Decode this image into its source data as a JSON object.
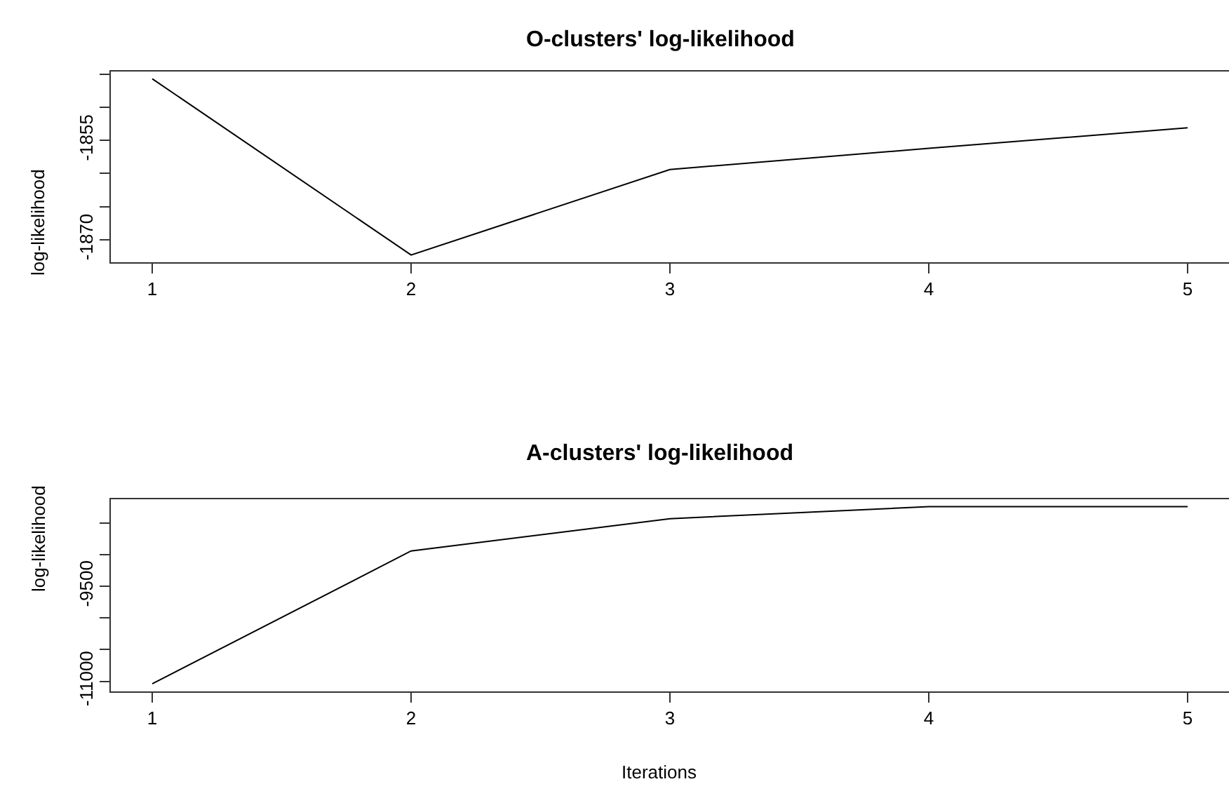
{
  "chart_data": [
    {
      "type": "line",
      "title": "O-clusters' log-likelihood",
      "ylabel": "log-likelihood",
      "x": [
        1,
        2,
        3,
        4,
        5
      ],
      "series": [
        {
          "color": "#000000",
          "values": [
            -1845.7,
            -1872.3,
            -1859.4,
            -1856.2,
            -1853.1
          ]
        }
      ],
      "xlim": [
        0.84,
        5.16
      ],
      "xticks": [
        1,
        2,
        3,
        4,
        5
      ],
      "ylim": [
        -1873.4,
        -1844.6
      ],
      "yticks": [
        {
          "value": -1870,
          "label": "-1870"
        },
        {
          "value": -1865,
          "label": null
        },
        {
          "value": -1860,
          "label": null
        },
        {
          "value": -1855,
          "label": "-1855"
        },
        {
          "value": -1850,
          "label": null
        },
        {
          "value": -1845,
          "label": null
        }
      ],
      "marker": "none",
      "line_style": "solid"
    },
    {
      "type": "line",
      "title": "A-clusters' log-likelihood",
      "xlabel": "Iterations",
      "ylabel": "log-likelihood",
      "x": [
        1,
        2,
        3,
        4,
        5
      ],
      "series": [
        {
          "color": "#000000",
          "values": [
            -11040,
            -8940,
            -8430,
            -8240,
            -8240
          ]
        }
      ],
      "xlim": [
        0.84,
        5.16
      ],
      "xticks": [
        1,
        2,
        3,
        4,
        5
      ],
      "ylim": [
        -11160,
        -8123
      ],
      "yticks": [
        {
          "value": -11000,
          "label": "-11000"
        },
        {
          "value": -10500,
          "label": null
        },
        {
          "value": -10000,
          "label": null
        },
        {
          "value": -9500,
          "label": "-9500"
        },
        {
          "value": -9000,
          "label": null
        },
        {
          "value": -8500,
          "label": null
        }
      ],
      "marker": "none",
      "line_style": "solid"
    }
  ]
}
